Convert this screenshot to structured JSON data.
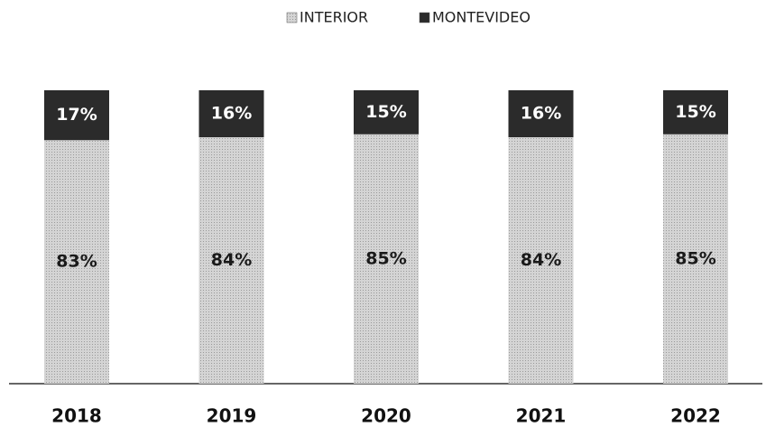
{
  "chart_data": {
    "type": "stacked_bar",
    "categories": [
      "2018",
      "2019",
      "2020",
      "2021",
      "2022"
    ],
    "series": [
      {
        "name": "INTERIOR",
        "color": "#d4d4d4",
        "values": [
          83,
          84,
          85,
          84,
          85
        ],
        "value_labels": [
          "83%",
          "84%",
          "85%",
          "84%",
          "85%"
        ],
        "label_color": "#1a1a1a"
      },
      {
        "name": "MONTEVIDEO",
        "color": "#2b2b2b",
        "values": [
          17,
          16,
          15,
          16,
          15
        ],
        "value_labels": [
          "17%",
          "16%",
          "15%",
          "16%",
          "15%"
        ],
        "label_color": "#ffffff"
      }
    ],
    "ylim": [
      0,
      100
    ],
    "legend": "top"
  }
}
